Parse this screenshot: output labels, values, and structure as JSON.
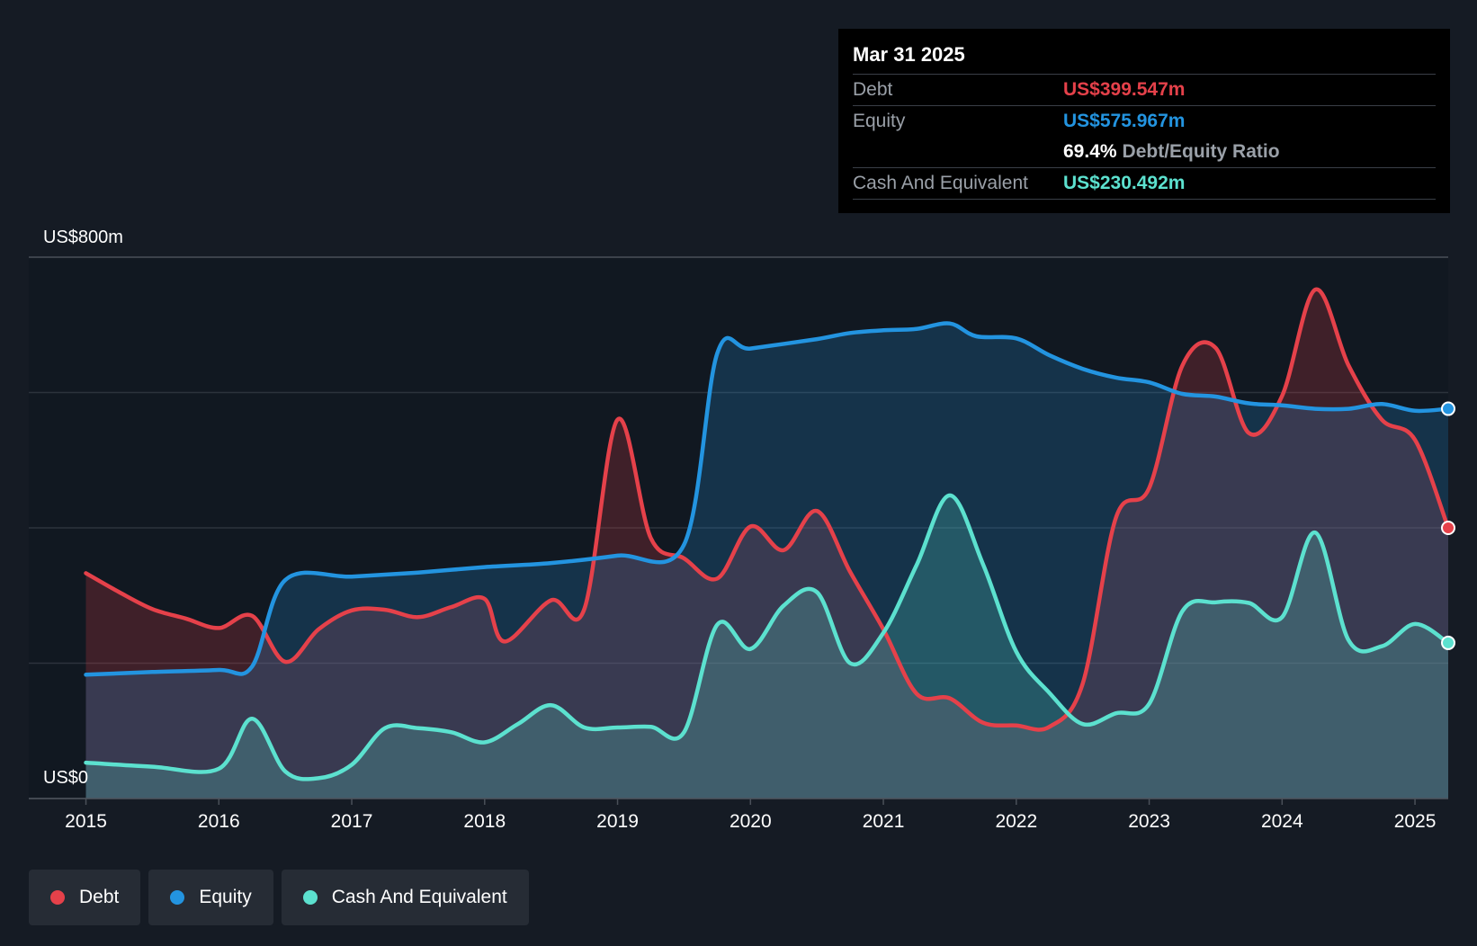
{
  "tooltip": {
    "date": "Mar 31 2025",
    "debt_label": "Debt",
    "debt_value": "US$399.547m",
    "equity_label": "Equity",
    "equity_value": "US$575.967m",
    "ratio_value": "69.4%",
    "ratio_label": "Debt/Equity Ratio",
    "cash_label": "Cash And Equivalent",
    "cash_value": "US$230.492m"
  },
  "legend": {
    "debt": "Debt",
    "equity": "Equity",
    "cash": "Cash And Equivalent"
  },
  "colors": {
    "debt": "#e5414a",
    "equity": "#2394e0",
    "cash": "#5ce1cf",
    "background": "#151b24"
  },
  "chart_data": {
    "type": "area",
    "title": "",
    "xlabel": "",
    "ylabel": "",
    "y_top_label": "US$800m",
    "y_bottom_label": "US$0",
    "ylim": [
      0,
      800
    ],
    "xlim": [
      2014.57,
      2025.25
    ],
    "x_ticks": [
      "2015",
      "2016",
      "2017",
      "2018",
      "2019",
      "2020",
      "2021",
      "2022",
      "2023",
      "2024",
      "2025"
    ],
    "grid": true,
    "legend_position": "bottom-left",
    "series": [
      {
        "name": "Debt",
        "points": [
          [
            2015.0,
            333
          ],
          [
            2015.25,
            305
          ],
          [
            2015.5,
            280
          ],
          [
            2015.75,
            266
          ],
          [
            2016.0,
            252
          ],
          [
            2016.25,
            270
          ],
          [
            2016.5,
            202
          ],
          [
            2016.75,
            250
          ],
          [
            2017.0,
            278
          ],
          [
            2017.25,
            279
          ],
          [
            2017.5,
            268
          ],
          [
            2017.75,
            283
          ],
          [
            2018.0,
            295
          ],
          [
            2018.15,
            232
          ],
          [
            2018.5,
            293
          ],
          [
            2018.75,
            280
          ],
          [
            2019.0,
            560
          ],
          [
            2019.25,
            385
          ],
          [
            2019.5,
            355
          ],
          [
            2019.75,
            325
          ],
          [
            2020.0,
            402
          ],
          [
            2020.25,
            367
          ],
          [
            2020.5,
            425
          ],
          [
            2020.75,
            335
          ],
          [
            2021.0,
            250
          ],
          [
            2021.25,
            155
          ],
          [
            2021.5,
            148
          ],
          [
            2021.75,
            112
          ],
          [
            2022.0,
            108
          ],
          [
            2022.25,
            106
          ],
          [
            2022.5,
            170
          ],
          [
            2022.75,
            415
          ],
          [
            2023.0,
            459
          ],
          [
            2023.25,
            640
          ],
          [
            2023.5,
            666
          ],
          [
            2023.75,
            540
          ],
          [
            2024.0,
            595
          ],
          [
            2024.25,
            752
          ],
          [
            2024.5,
            640
          ],
          [
            2024.75,
            560
          ],
          [
            2025.0,
            530
          ],
          [
            2025.25,
            400
          ]
        ]
      },
      {
        "name": "Equity",
        "points": [
          [
            2015.0,
            183
          ],
          [
            2015.5,
            187
          ],
          [
            2016.0,
            190
          ],
          [
            2016.25,
            195
          ],
          [
            2016.5,
            323
          ],
          [
            2017.0,
            328
          ],
          [
            2017.5,
            334
          ],
          [
            2018.0,
            342
          ],
          [
            2018.5,
            348
          ],
          [
            2019.0,
            359
          ],
          [
            2019.5,
            375
          ],
          [
            2019.75,
            658
          ],
          [
            2020.0,
            665
          ],
          [
            2020.5,
            679
          ],
          [
            2020.75,
            688
          ],
          [
            2021.0,
            692
          ],
          [
            2021.25,
            694
          ],
          [
            2021.5,
            702
          ],
          [
            2021.7,
            683
          ],
          [
            2022.0,
            680
          ],
          [
            2022.25,
            655
          ],
          [
            2022.5,
            635
          ],
          [
            2022.75,
            622
          ],
          [
            2023.0,
            615
          ],
          [
            2023.25,
            598
          ],
          [
            2023.5,
            594
          ],
          [
            2023.75,
            584
          ],
          [
            2024.0,
            581
          ],
          [
            2024.25,
            576
          ],
          [
            2024.5,
            576
          ],
          [
            2024.75,
            583
          ],
          [
            2025.0,
            573
          ],
          [
            2025.25,
            576
          ]
        ]
      },
      {
        "name": "Cash And Equivalent",
        "points": [
          [
            2015.0,
            53
          ],
          [
            2015.5,
            47
          ],
          [
            2016.0,
            44
          ],
          [
            2016.25,
            118
          ],
          [
            2016.5,
            40
          ],
          [
            2016.75,
            30
          ],
          [
            2017.0,
            50
          ],
          [
            2017.25,
            104
          ],
          [
            2017.5,
            104
          ],
          [
            2017.75,
            98
          ],
          [
            2018.0,
            83
          ],
          [
            2018.25,
            110
          ],
          [
            2018.5,
            138
          ],
          [
            2018.75,
            105
          ],
          [
            2019.0,
            105
          ],
          [
            2019.25,
            106
          ],
          [
            2019.5,
            98
          ],
          [
            2019.75,
            257
          ],
          [
            2020.0,
            221
          ],
          [
            2020.25,
            285
          ],
          [
            2020.5,
            305
          ],
          [
            2020.75,
            200
          ],
          [
            2021.0,
            245
          ],
          [
            2021.25,
            345
          ],
          [
            2021.5,
            448
          ],
          [
            2021.75,
            346
          ],
          [
            2022.0,
            217
          ],
          [
            2022.25,
            156
          ],
          [
            2022.5,
            110
          ],
          [
            2022.75,
            126
          ],
          [
            2023.0,
            140
          ],
          [
            2023.25,
            277
          ],
          [
            2023.5,
            290
          ],
          [
            2023.75,
            289
          ],
          [
            2024.0,
            268
          ],
          [
            2024.25,
            393
          ],
          [
            2024.5,
            234
          ],
          [
            2024.75,
            225
          ],
          [
            2025.0,
            258
          ],
          [
            2025.25,
            230
          ]
        ]
      }
    ]
  }
}
